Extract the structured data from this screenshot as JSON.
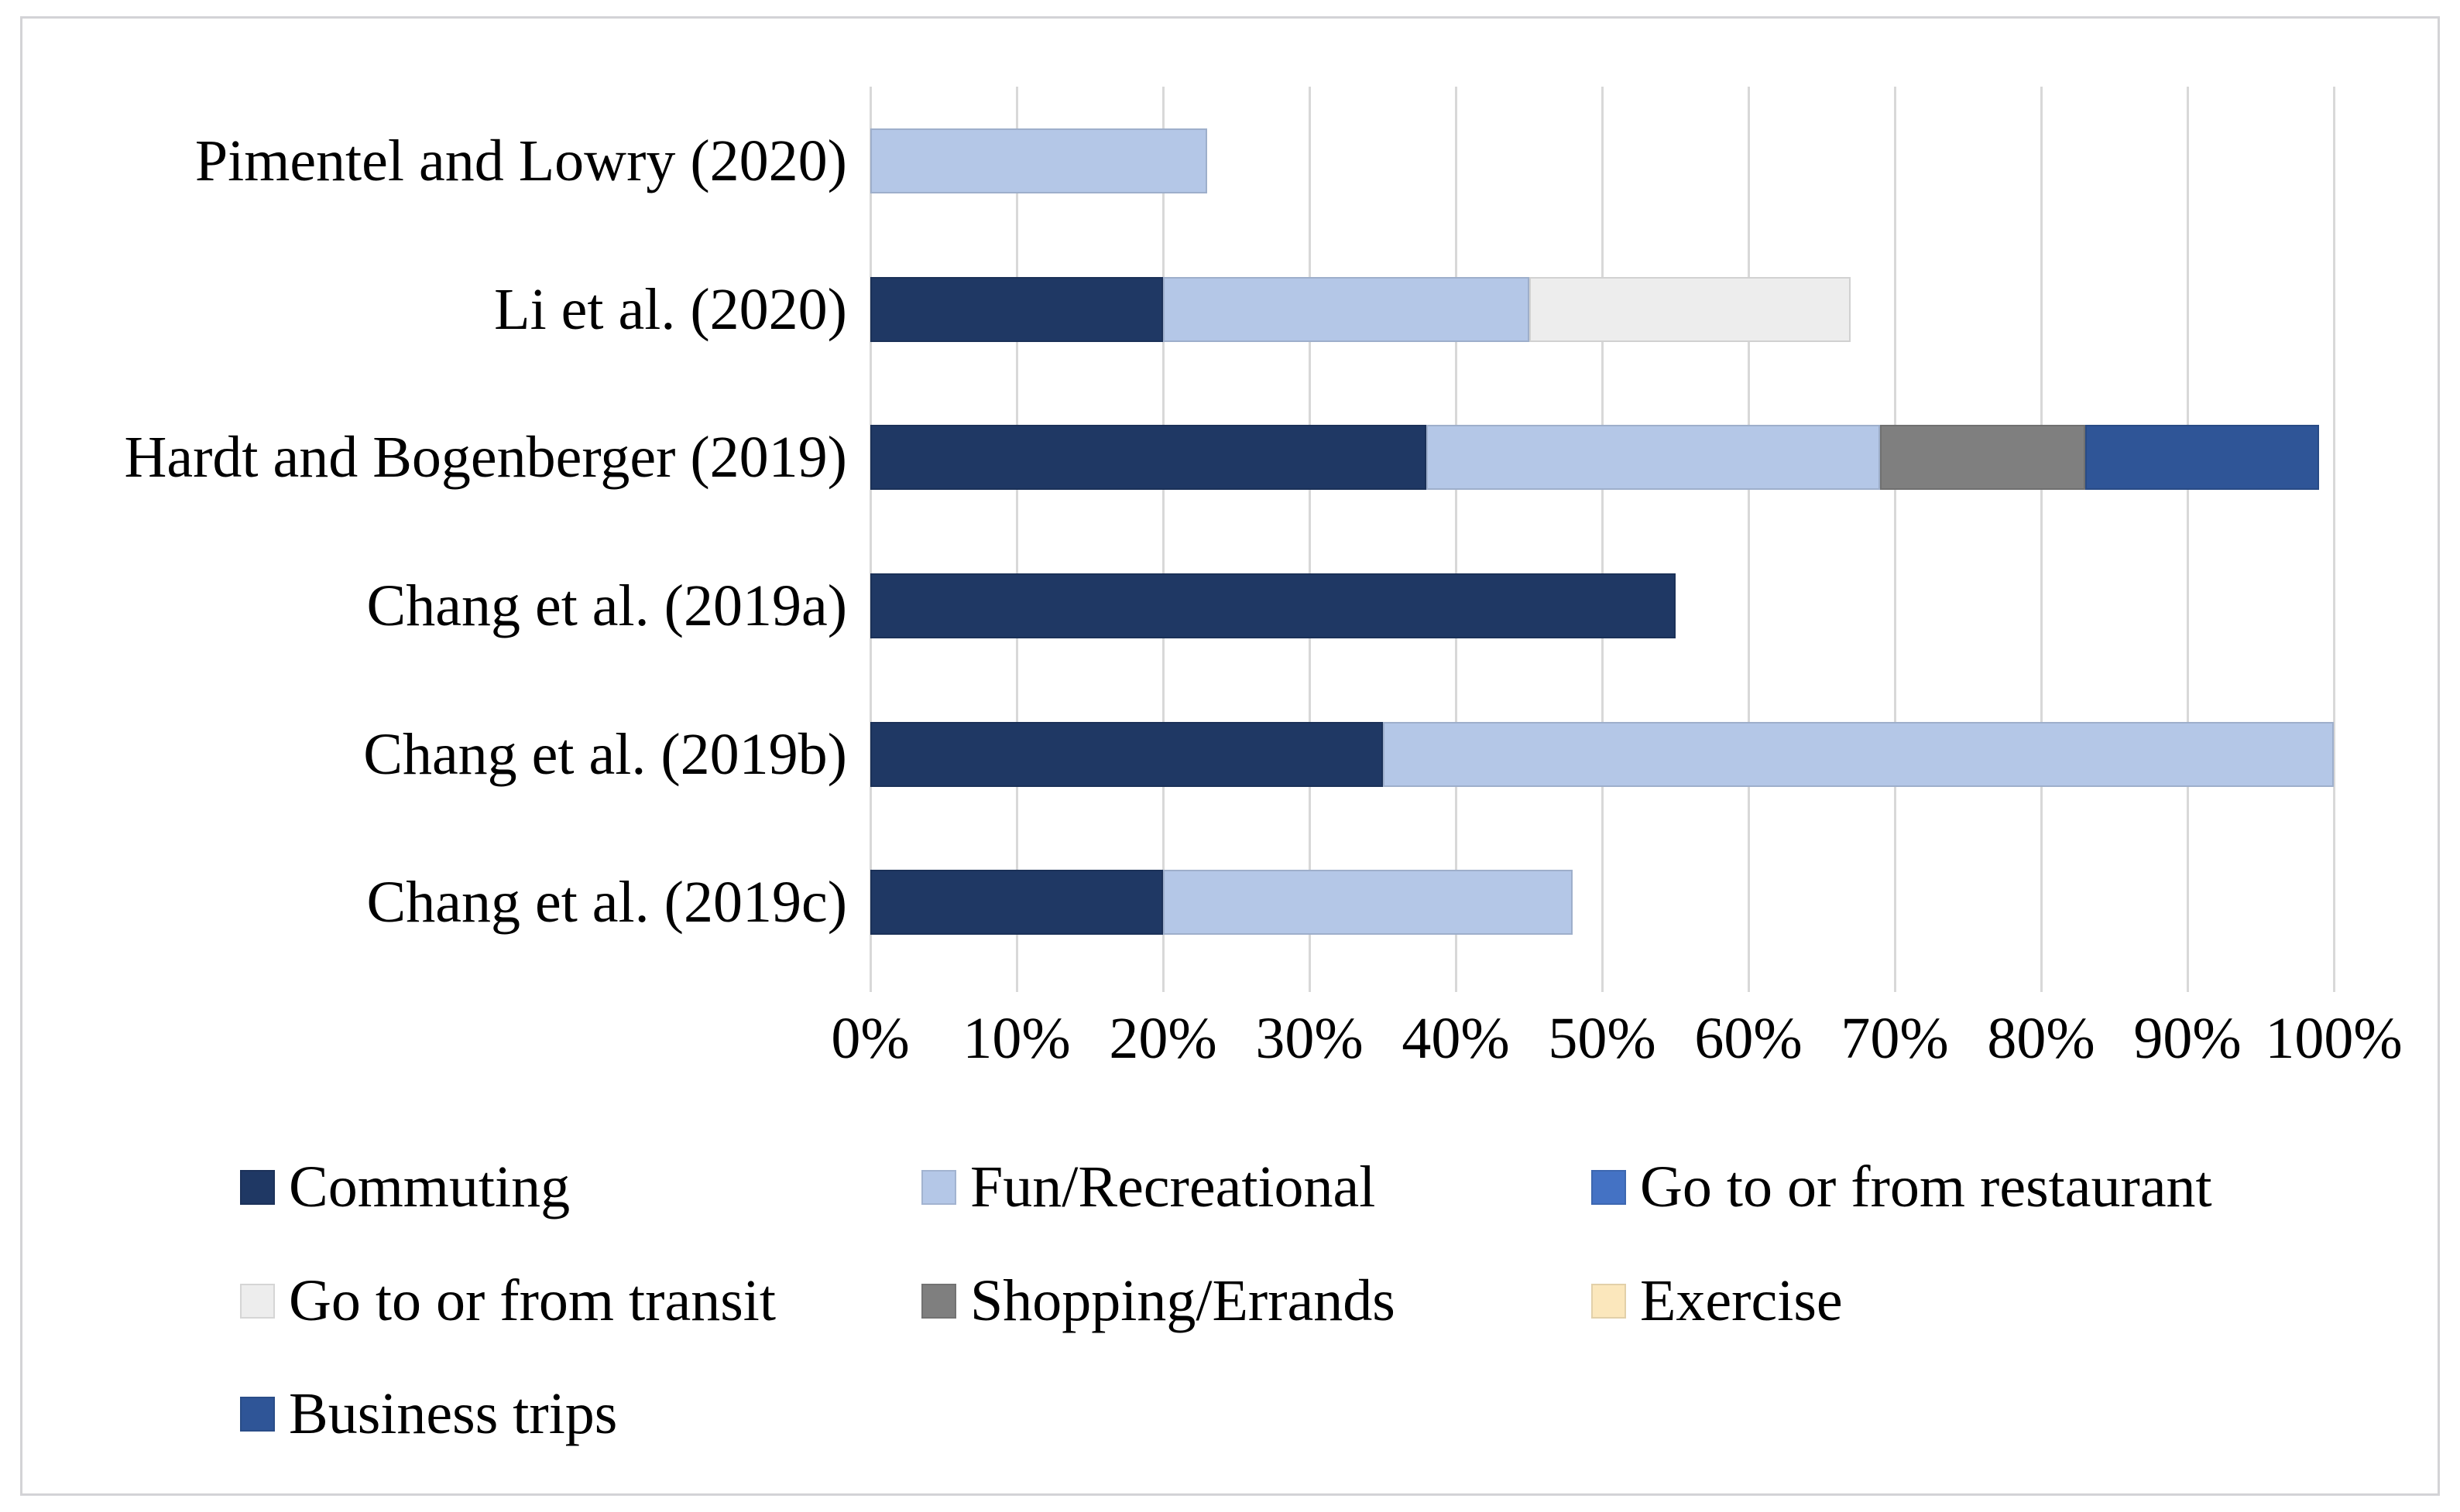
{
  "figure": {
    "description": "Horizontal stacked bar chart of trip purposes reported across six studies",
    "background_color": "#FFFFFF",
    "frame_border_color": "#D3D3D6",
    "gridline_color": "#D8D8D8",
    "text_color": "#000000"
  },
  "chart_data": {
    "type": "bar",
    "orientation": "horizontal",
    "stacked": true,
    "title": "",
    "xlabel": "",
    "ylabel": "",
    "xlim": [
      0,
      100
    ],
    "x_ticks": [
      "0%",
      "10%",
      "20%",
      "30%",
      "40%",
      "50%",
      "60%",
      "70%",
      "80%",
      "90%",
      "100%"
    ],
    "grid": true,
    "legend_position": "bottom",
    "categories": [
      "Pimentel and Lowry (2020)",
      "Li et al. (2020)",
      "Hardt and Bogenberger (2019)",
      "Chang et al. (2019a)",
      "Chang et al. (2019b)",
      "Chang et al. (2019c)"
    ],
    "series": [
      {
        "name": "Commuting",
        "color": "#1F3864",
        "values": [
          0,
          20,
          38,
          55,
          35,
          20
        ]
      },
      {
        "name": "Fun/Recreational",
        "color": "#B4C7E7",
        "values": [
          23,
          25,
          31,
          0,
          65,
          28
        ]
      },
      {
        "name": "Go to or from restaurant",
        "color": "#4472C4",
        "values": [
          0,
          0,
          0,
          0,
          0,
          0
        ]
      },
      {
        "name": "Go to or from transit",
        "color": "#EDEDED",
        "values": [
          0,
          22,
          0,
          0,
          0,
          0
        ]
      },
      {
        "name": "Shopping/Errands",
        "color": "#7F7F7F",
        "values": [
          0,
          0,
          14,
          0,
          0,
          0
        ]
      },
      {
        "name": "Exercise",
        "color": "#FBE7BC",
        "values": [
          0,
          0,
          0,
          0,
          0,
          0
        ]
      },
      {
        "name": "Business trips",
        "color": "#2F5597",
        "values": [
          0,
          0,
          16,
          0,
          0,
          0
        ]
      }
    ],
    "totals_by_category": [
      23,
      67,
      99,
      55,
      100,
      48
    ]
  }
}
